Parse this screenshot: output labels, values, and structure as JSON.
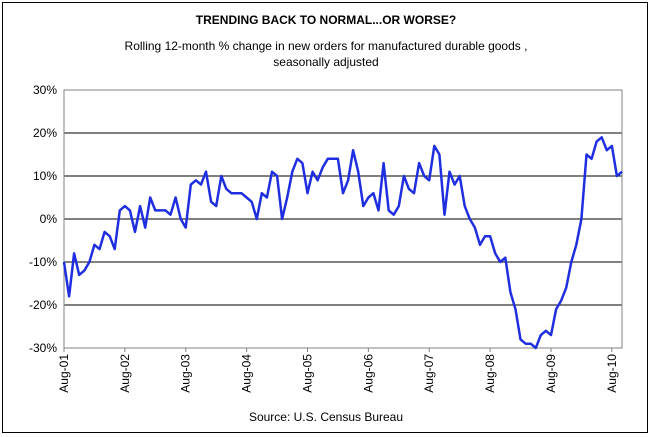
{
  "chart_data": {
    "type": "line",
    "title": "TRENDING BACK TO NORMAL...OR WORSE?",
    "subtitle_line1": "Rolling 12-month % change in new orders for manufactured durable goods ,",
    "subtitle_line2": "seasonally adjusted",
    "source": "Source: U.S. Census Bureau",
    "ylim": [
      -30,
      30
    ],
    "yticks": [
      30,
      20,
      10,
      0,
      -10,
      -20,
      -30
    ],
    "ytick_labels": [
      "30%",
      "20%",
      "10%",
      "0%",
      "-10%",
      "-20%",
      "-30%"
    ],
    "xtick_labels": [
      "Aug-01",
      "Aug-02",
      "Aug-03",
      "Aug-04",
      "Aug-05",
      "Aug-06",
      "Aug-07",
      "Aug-08",
      "Aug-09",
      "Aug-10"
    ],
    "grid": "horizontal",
    "line_color": "#1f2fe0",
    "series": [
      {
        "values": [
          -10,
          -18,
          -8,
          -13,
          -12,
          -10,
          -6,
          -7,
          -3,
          -4,
          -7,
          2,
          3,
          2,
          -3,
          3,
          -2,
          5,
          2,
          2,
          2,
          1,
          5,
          0,
          -2,
          8,
          9,
          8,
          11,
          4,
          3,
          10,
          7,
          6,
          6,
          6,
          5,
          4,
          0,
          6,
          5,
          11,
          10,
          0,
          5,
          11,
          14,
          13,
          6,
          11,
          9,
          12,
          14,
          14,
          14,
          6,
          9,
          16,
          11,
          3,
          5,
          6,
          2,
          13,
          2,
          1,
          3,
          10,
          7,
          6,
          13,
          10,
          9,
          17,
          15,
          1,
          11,
          8,
          10,
          3,
          0,
          -2,
          -6,
          -4,
          -4,
          -8,
          -10,
          -9,
          -17,
          -21,
          -28,
          -29,
          -29,
          -30,
          -27,
          -26,
          -27,
          -21,
          -19,
          -16,
          -10,
          -6,
          0,
          15,
          14,
          18,
          19,
          16,
          17,
          10,
          11
        ]
      }
    ]
  }
}
